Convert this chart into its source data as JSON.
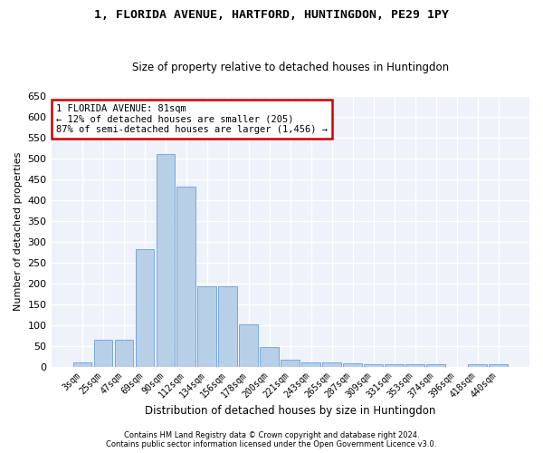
{
  "title": "1, FLORIDA AVENUE, HARTFORD, HUNTINGDON, PE29 1PY",
  "subtitle": "Size of property relative to detached houses in Huntingdon",
  "xlabel": "Distribution of detached houses by size in Huntingdon",
  "ylabel": "Number of detached properties",
  "bar_labels": [
    "3sqm",
    "25sqm",
    "47sqm",
    "69sqm",
    "90sqm",
    "112sqm",
    "134sqm",
    "156sqm",
    "178sqm",
    "200sqm",
    "221sqm",
    "243sqm",
    "265sqm",
    "287sqm",
    "309sqm",
    "331sqm",
    "353sqm",
    "374sqm",
    "396sqm",
    "418sqm",
    "440sqm"
  ],
  "bar_values": [
    10,
    65,
    65,
    282,
    510,
    432,
    192,
    192,
    101,
    46,
    16,
    11,
    11,
    8,
    5,
    5,
    5,
    5,
    0,
    5,
    5
  ],
  "bar_color": "#b8cfe8",
  "bar_edge_color": "#6a9fd8",
  "background_color": "#eef2fa",
  "grid_color": "#ffffff",
  "annotation_text": "1 FLORIDA AVENUE: 81sqm\n← 12% of detached houses are smaller (205)\n87% of semi-detached houses are larger (1,456) →",
  "annotation_box_color": "#ffffff",
  "annotation_box_edge": "#cc0000",
  "ylim": [
    0,
    650
  ],
  "yticks": [
    0,
    50,
    100,
    150,
    200,
    250,
    300,
    350,
    400,
    450,
    500,
    550,
    600,
    650
  ],
  "footer1": "Contains HM Land Registry data © Crown copyright and database right 2024.",
  "footer2": "Contains public sector information licensed under the Open Government Licence v3.0."
}
